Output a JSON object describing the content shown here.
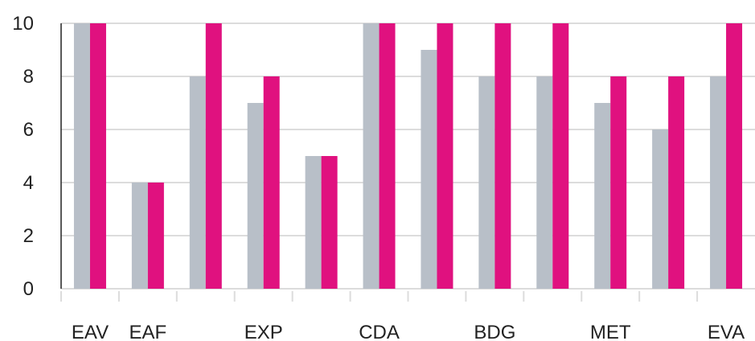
{
  "chart_data": {
    "type": "bar",
    "categories": [
      "EAV",
      "EAF",
      "",
      "EXP",
      "",
      "CDA",
      "",
      "BDG",
      "",
      "MET",
      "",
      "EVA"
    ],
    "series": [
      {
        "values": [
          10,
          4,
          8,
          7,
          5,
          10,
          9,
          8,
          8,
          7,
          6,
          8
        ],
        "color": "#b8bfc8"
      },
      {
        "values": [
          10,
          4,
          10,
          8,
          5,
          10,
          10,
          10,
          10,
          8,
          8,
          10
        ],
        "color": "#e0117f"
      }
    ],
    "yticks": [
      0,
      2,
      4,
      6,
      8,
      10
    ],
    "ylim": [
      0,
      10
    ],
    "grid": true
  }
}
